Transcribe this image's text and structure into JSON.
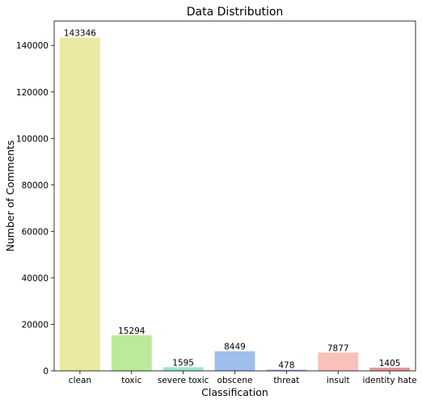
{
  "chart_data": {
    "type": "bar",
    "title": "Data Distribution",
    "xlabel": "Classification",
    "ylabel": "Number of Comments",
    "categories": [
      "clean",
      "toxic",
      "severe toxic",
      "obscene",
      "threat",
      "insult",
      "identity hate"
    ],
    "values": [
      143346,
      15294,
      1595,
      8449,
      478,
      7877,
      1405
    ],
    "data_labels": [
      "143346",
      "15294",
      "1595",
      "8449",
      "478",
      "7877",
      "1405"
    ],
    "colors": [
      "#ebe99f",
      "#b9eb9a",
      "#9ee6cb",
      "#9ebeeb",
      "#b69ae6",
      "#f9c1bb",
      "#e6969c"
    ],
    "yticks": [
      0,
      20000,
      40000,
      60000,
      80000,
      100000,
      120000,
      140000
    ],
    "ytick_labels": [
      "0",
      "20000",
      "40000",
      "60000",
      "80000",
      "100000",
      "120000",
      "140000"
    ],
    "ylim": [
      0,
      150500
    ],
    "grid": false,
    "legend": "none"
  }
}
